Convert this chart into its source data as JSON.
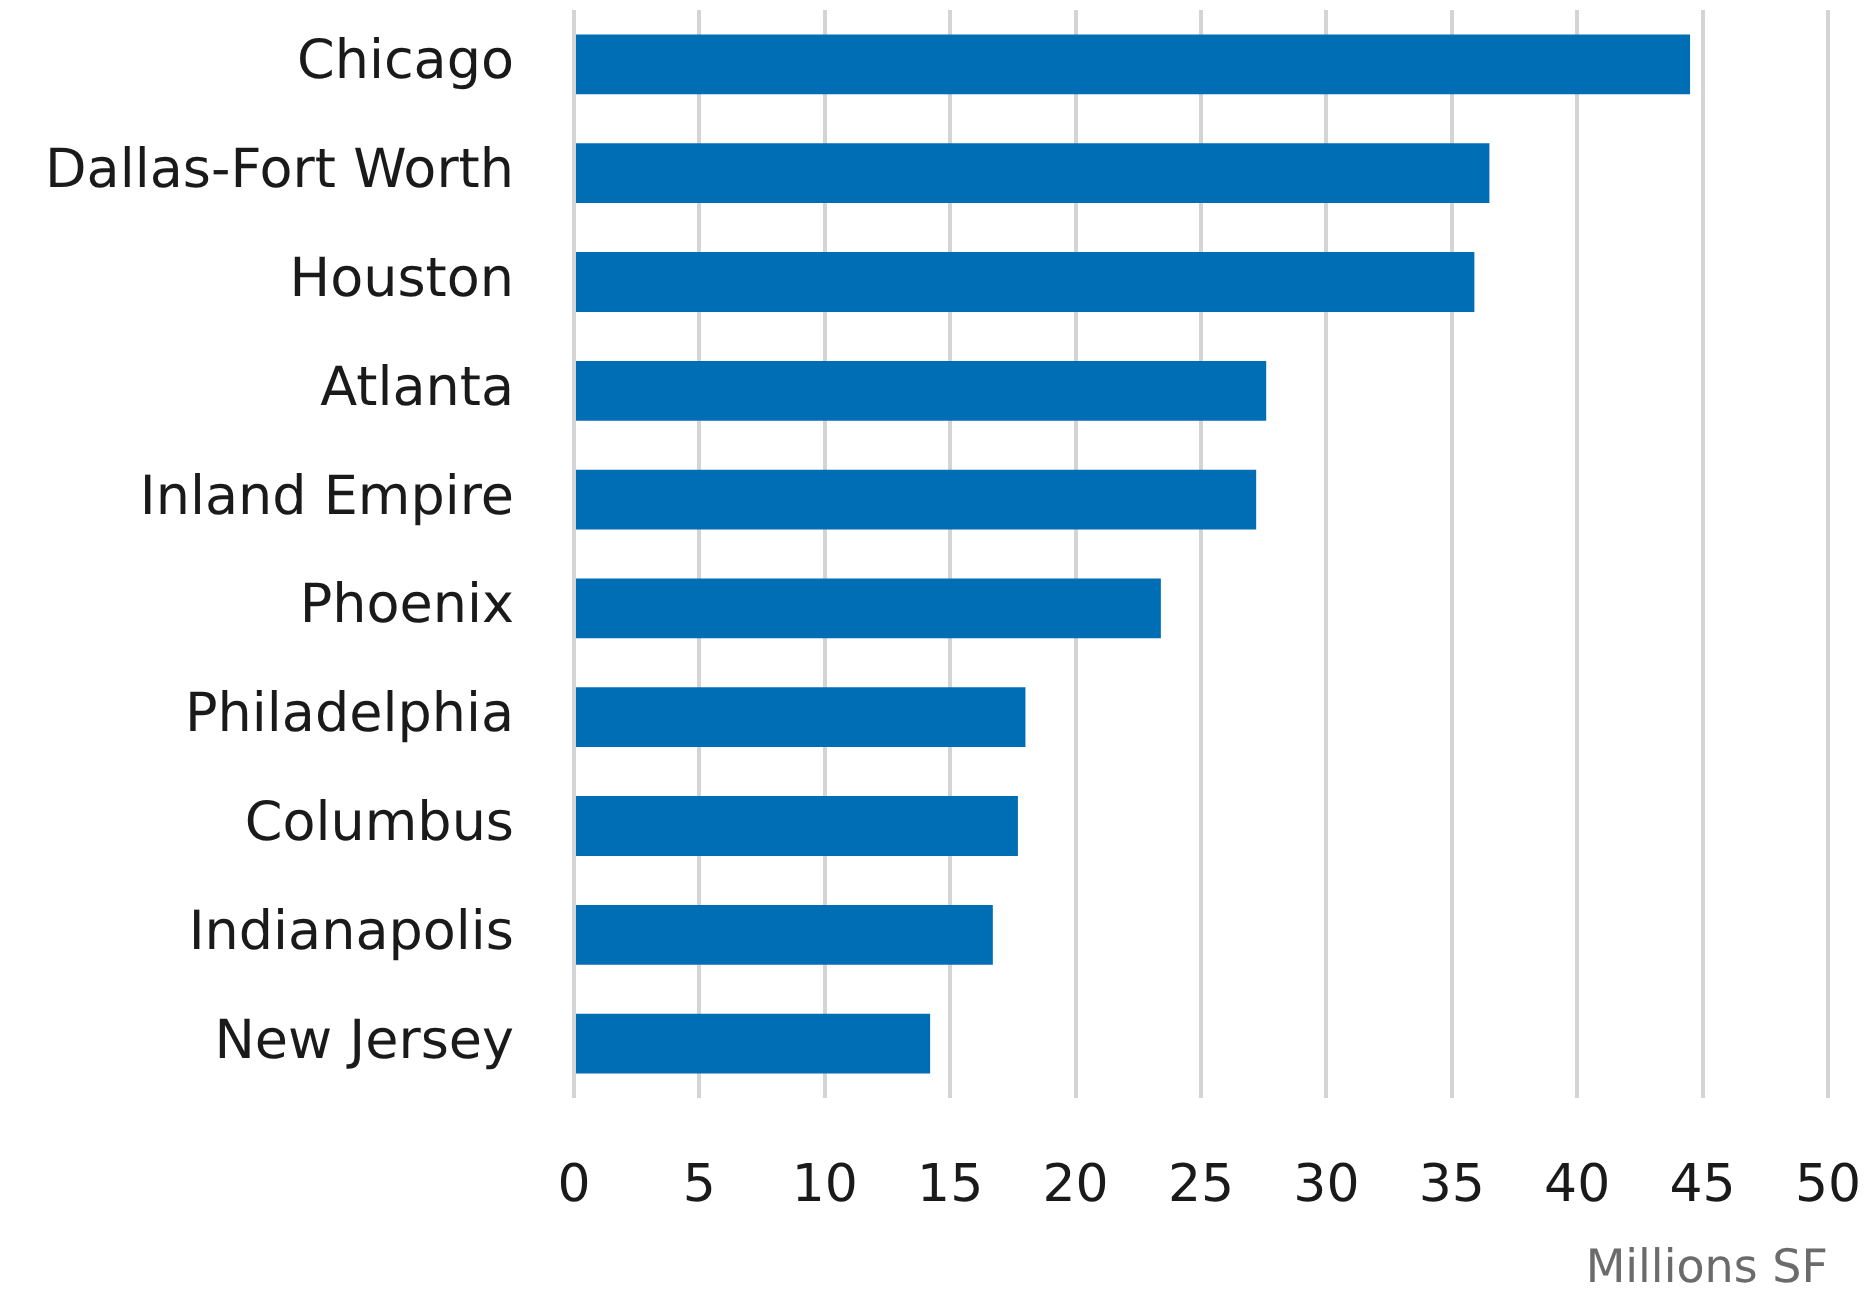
{
  "chart_data": {
    "type": "bar",
    "orientation": "horizontal",
    "categories": [
      "Chicago",
      "Dallas-Fort Worth",
      "Houston",
      "Atlanta",
      "Inland Empire",
      "Phoenix",
      "Philadelphia",
      "Columbus",
      "Indianapolis",
      "New Jersey"
    ],
    "values": [
      44.5,
      36.5,
      35.9,
      27.6,
      27.2,
      23.4,
      18.0,
      17.7,
      16.7,
      14.2
    ],
    "color": "#006eb4",
    "xlabel": "Millions SF",
    "xlim": [
      0,
      50
    ],
    "xticks": [
      0,
      5,
      10,
      15,
      20,
      25,
      30,
      35,
      40,
      45,
      50
    ],
    "grid": "x"
  }
}
